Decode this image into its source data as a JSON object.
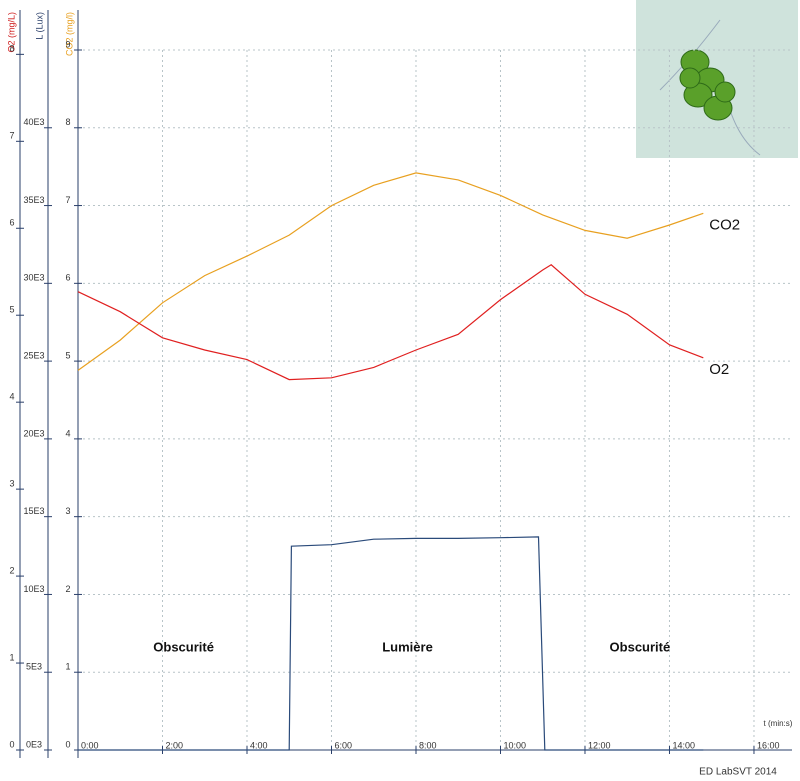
{
  "chart_data": {
    "type": "line",
    "xlabel": "t (min:s)",
    "footer": "ED  LabSVT 2014",
    "xlim": [
      0,
      16.9
    ],
    "xticks": [
      {
        "value": 0,
        "label": "0:00"
      },
      {
        "value": 2,
        "label": "2:00"
      },
      {
        "value": 4,
        "label": "4:00"
      },
      {
        "value": 6,
        "label": "6:00"
      },
      {
        "value": 8,
        "label": "8:00"
      },
      {
        "value": 10,
        "label": "10:00"
      },
      {
        "value": 12,
        "label": "12:00"
      },
      {
        "value": 14,
        "label": "14:00"
      },
      {
        "value": 16,
        "label": "16:00"
      }
    ],
    "grid": true,
    "y_axes": [
      {
        "label": "O2 (mg/L)",
        "color": "#d02020",
        "lim": [
          0,
          8.05
        ],
        "ticks": [
          0,
          1,
          2,
          3,
          4,
          5,
          6,
          7,
          8
        ]
      },
      {
        "label": "L (Lux)",
        "color": "#2a3f6a",
        "lim": [
          0,
          45000
        ],
        "ticks": [
          {
            "value": 0,
            "label": "0E3"
          },
          {
            "value": 5000,
            "label": "5E3"
          },
          {
            "value": 10000,
            "label": "10E3"
          },
          {
            "value": 15000,
            "label": "15E3"
          },
          {
            "value": 20000,
            "label": "20E3"
          },
          {
            "value": 25000,
            "label": "25E3"
          },
          {
            "value": 30000,
            "label": "30E3"
          },
          {
            "value": 35000,
            "label": "35E3"
          },
          {
            "value": 40000,
            "label": "40E3"
          }
        ]
      },
      {
        "label": "CO2 (mg/l)",
        "color": "#e8a020",
        "lim": [
          0,
          9
        ],
        "ticks": [
          0,
          1,
          2,
          3,
          4,
          5,
          6,
          7,
          8,
          9
        ]
      }
    ],
    "series": [
      {
        "name": "CO2",
        "color": "#e8a020",
        "axis": 2,
        "x": [
          0,
          1,
          2,
          3,
          4,
          5,
          6,
          7,
          8,
          9,
          10,
          11,
          12,
          13,
          14,
          14.8
        ],
        "values": [
          4.88,
          5.27,
          5.75,
          6.1,
          6.35,
          6.62,
          7.0,
          7.26,
          7.42,
          7.33,
          7.13,
          6.88,
          6.68,
          6.58,
          6.75,
          6.9
        ]
      },
      {
        "name": "O2",
        "color": "#e02020",
        "axis": 0,
        "x": [
          0,
          1,
          2,
          3,
          4,
          5,
          6,
          7,
          8,
          9,
          10,
          11,
          11.2,
          12,
          13,
          14,
          14.8
        ],
        "values": [
          5.27,
          5.04,
          4.74,
          4.6,
          4.49,
          4.26,
          4.28,
          4.4,
          4.6,
          4.78,
          5.18,
          5.52,
          5.58,
          5.24,
          5.01,
          4.66,
          4.51
        ]
      },
      {
        "name": "L",
        "color": "#2a4a7a",
        "axis": 1,
        "x": [
          0,
          5,
          5.05,
          6,
          7,
          8,
          9,
          10,
          10.9,
          11.05,
          14.8
        ],
        "values": [
          0,
          0,
          13100,
          13200,
          13550,
          13600,
          13600,
          13650,
          13700,
          0,
          0
        ]
      }
    ],
    "annotations": [
      {
        "text": "Obscurité",
        "x": 2.5
      },
      {
        "text": "Lumière",
        "x": 7.8
      },
      {
        "text": "Obscurité",
        "x": 13.3
      }
    ]
  }
}
